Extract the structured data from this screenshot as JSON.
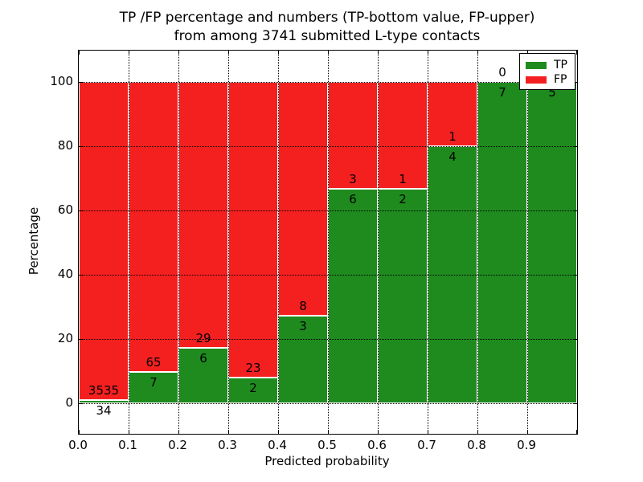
{
  "title": {
    "line1": "TP /FP percentage and numbers (TP-bottom value, FP-upper)",
    "line2": "from among 3741 submitted L-type contacts"
  },
  "axes": {
    "x_label": "Predicted probability",
    "y_label": "Percentage",
    "x_tick_labels": [
      "0.0",
      "0.1",
      "0.2",
      "0.3",
      "0.4",
      "0.5",
      "0.6",
      "0.7",
      "0.8",
      "0.9"
    ],
    "y_tick_labels": [
      "0",
      "20",
      "40",
      "60",
      "80",
      "100"
    ],
    "y_tick_values": [
      0,
      20,
      40,
      60,
      80,
      100
    ],
    "x_range": [
      0.0,
      1.0
    ],
    "y_range_display": [
      -9.5,
      109.75
    ],
    "grid_style": "dotted"
  },
  "legend": {
    "position": "upper right",
    "items": [
      {
        "label": "TP",
        "color": "#1f8b1f"
      },
      {
        "label": "FP",
        "color": "#f42020"
      }
    ]
  },
  "colors": {
    "tp": "#1f8b1f",
    "fp": "#f42020",
    "background": "#ffffff",
    "bar_edge": "#ffffff",
    "annotation": "#000000"
  },
  "chart_data": {
    "type": "bar",
    "stacked": true,
    "unit": "percent of bin, TP bottom / FP top, each bin normalized to 100",
    "title": "TP /FP percentage and numbers (TP-bottom value, FP-upper) from among 3741 submitted L-type contacts",
    "xlabel": "Predicted probability",
    "ylabel": "Percentage",
    "total_contacts": 3741,
    "bins": [
      "0.0-0.1",
      "0.1-0.2",
      "0.2-0.3",
      "0.3-0.4",
      "0.4-0.5",
      "0.5-0.6",
      "0.6-0.7",
      "0.7-0.8",
      "0.8-0.9",
      "0.9-1.0"
    ],
    "series": [
      {
        "name": "TP",
        "counts": [
          34,
          7,
          6,
          2,
          3,
          6,
          2,
          4,
          7,
          5
        ]
      },
      {
        "name": "FP",
        "counts": [
          3535,
          65,
          29,
          23,
          8,
          3,
          1,
          1,
          0,
          0
        ]
      }
    ],
    "tp_percent": [
      0.95,
      9.72,
      17.14,
      8.0,
      27.27,
      66.67,
      66.67,
      80.0,
      100.0,
      100.0
    ],
    "ylim": [
      0,
      100
    ],
    "legend_position": "upper right",
    "grid": true
  }
}
